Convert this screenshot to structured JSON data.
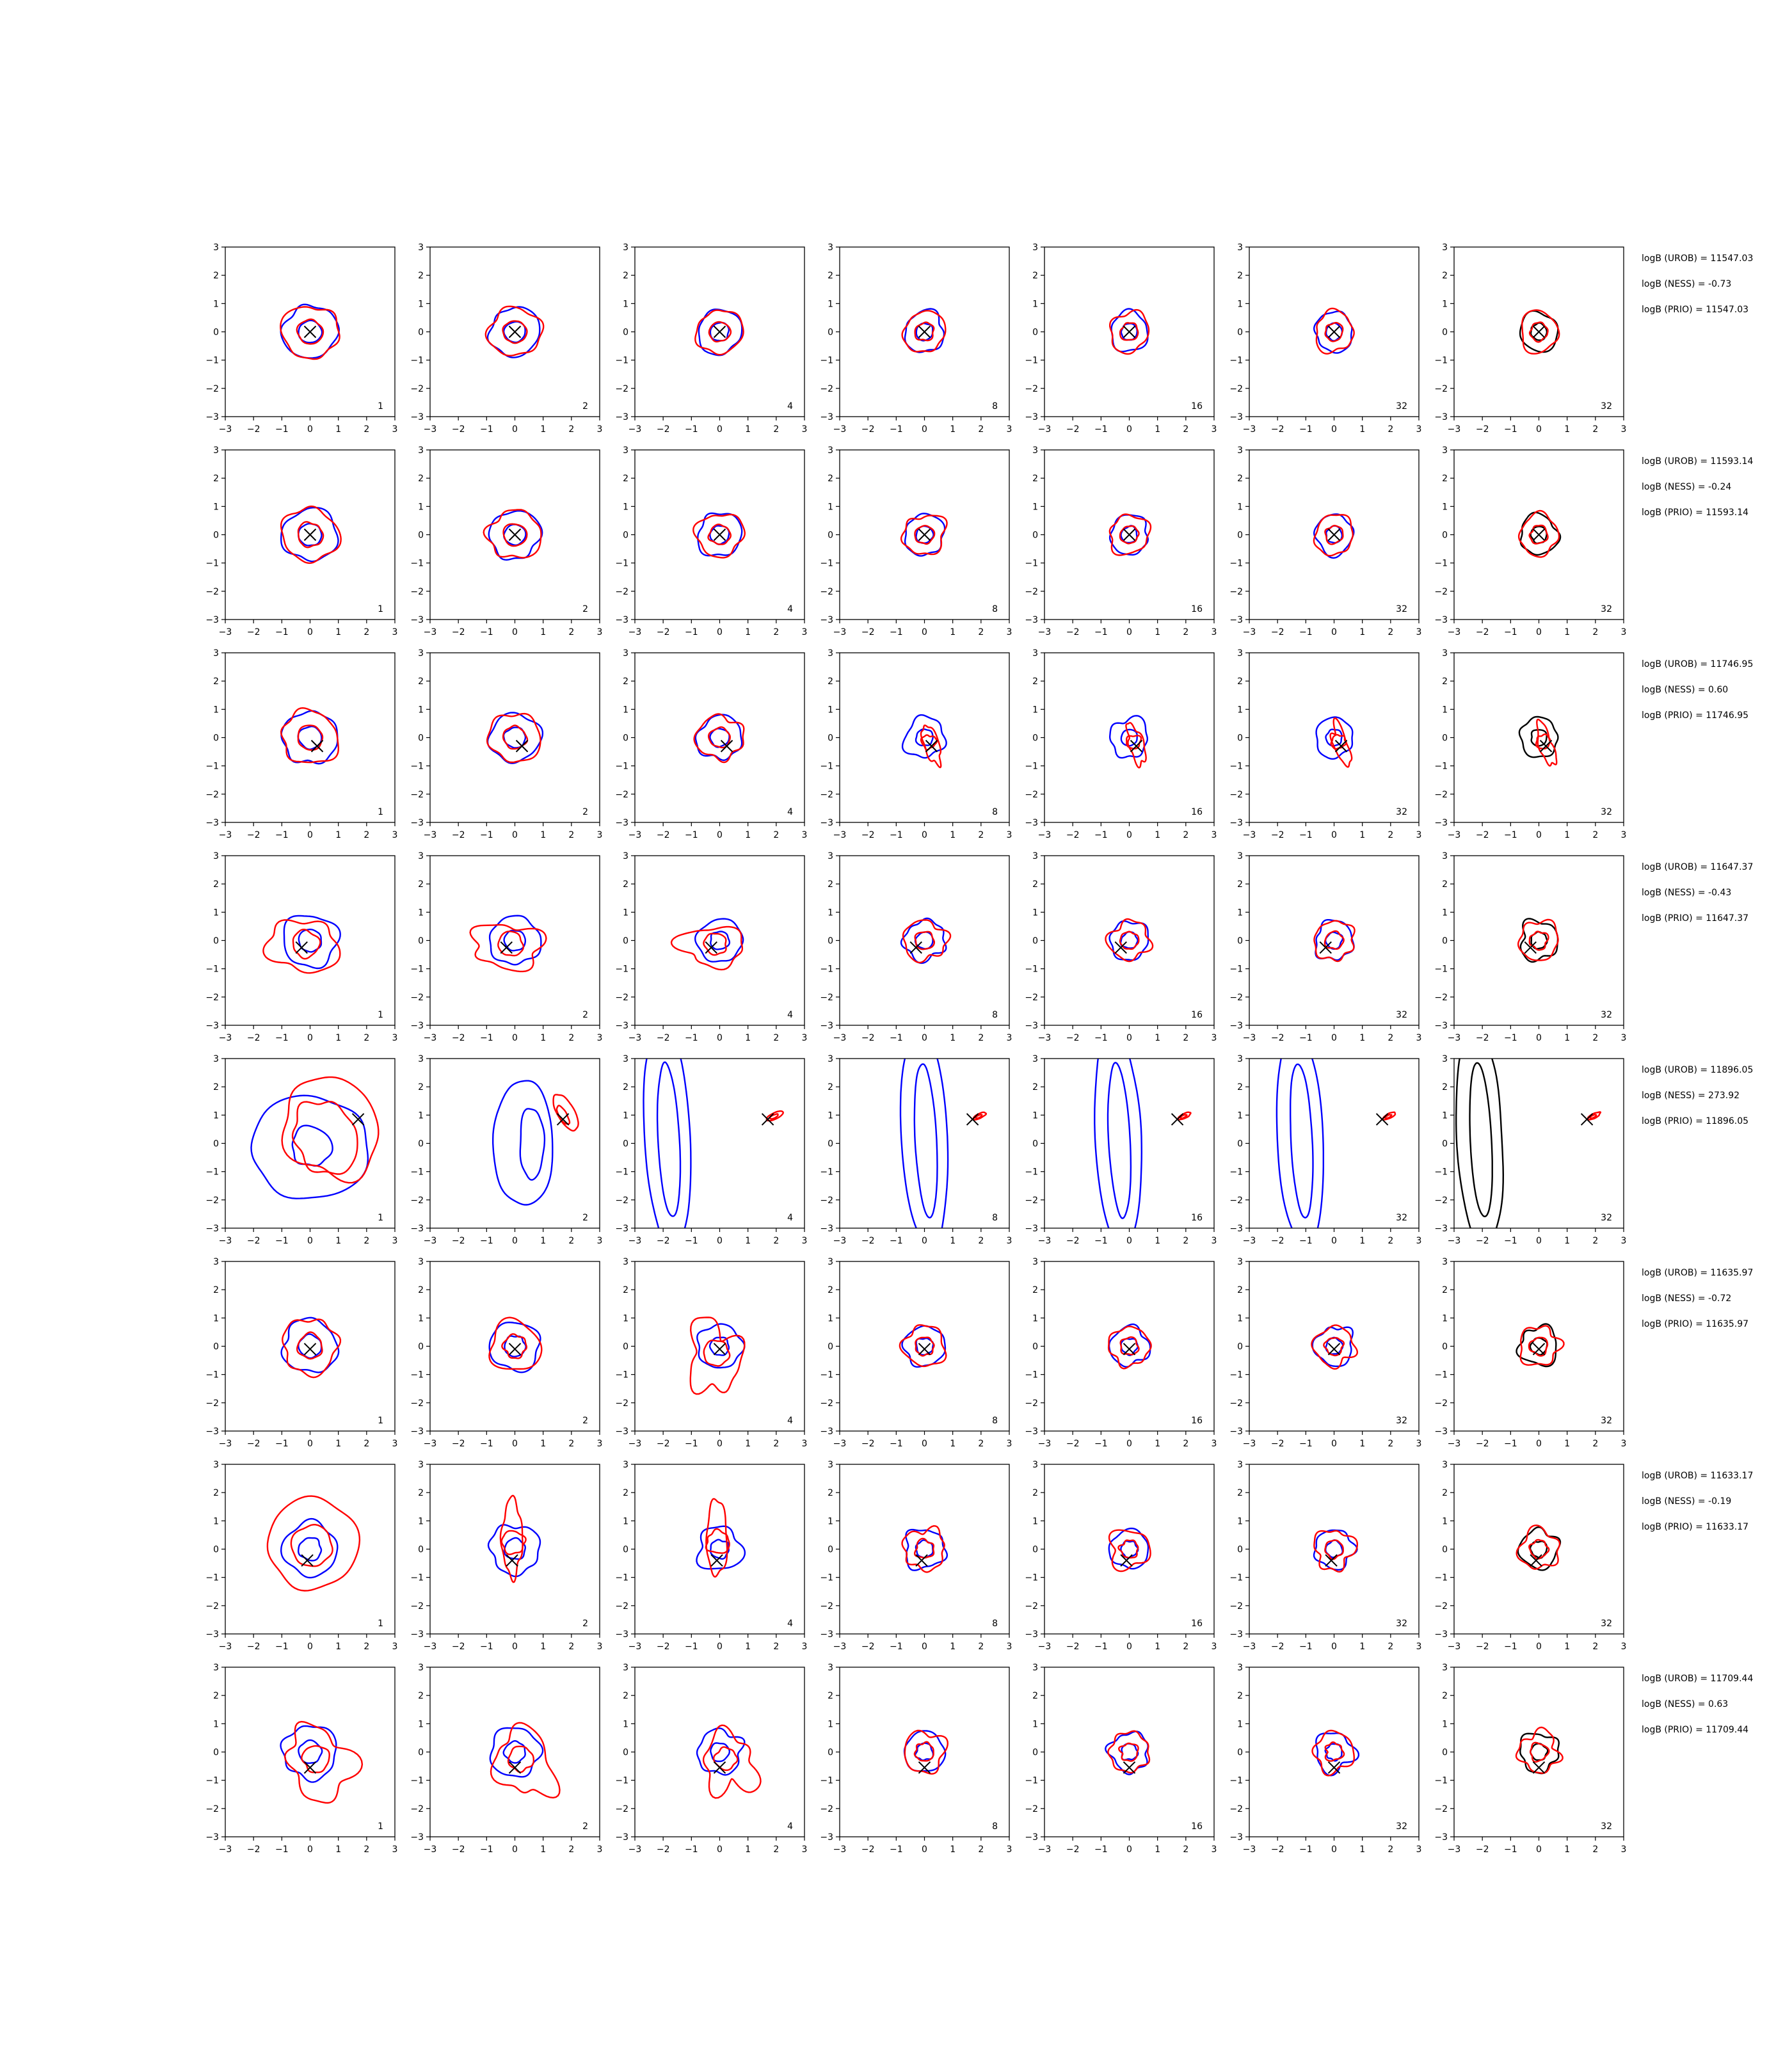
{
  "chart_data": {
    "type": "contour-grid",
    "rows": 8,
    "cols": 7,
    "xlim": [
      -3,
      3
    ],
    "ylim": [
      -3,
      3
    ],
    "ticks": [
      -3,
      -2,
      -1,
      0,
      1,
      2,
      3
    ],
    "tick_labels": [
      "−3",
      "−2",
      "−1",
      "0",
      "1",
      "2",
      "3"
    ],
    "panel_labels": [
      "1",
      "2",
      "4",
      "8",
      "16",
      "32",
      "32"
    ],
    "colors": {
      "blue": "#0000ff",
      "red": "#ff0000",
      "black": "#000000",
      "marker": "#000000"
    },
    "rows_data": [
      {
        "marker": [
          0.0,
          0.0
        ],
        "annotations": [
          "logB (UROB) = 11547.03",
          "logB (NESS) = -0.73",
          "logB (PRIO) = 11547.03"
        ]
      },
      {
        "marker": [
          0.0,
          0.0
        ],
        "annotations": [
          "logB (UROB) = 11593.14",
          "logB (NESS) = -0.24",
          "logB (PRIO) = 11593.14"
        ]
      },
      {
        "marker": [
          0.25,
          -0.3
        ],
        "annotations": [
          "logB (UROB) = 11746.95",
          "logB (NESS) = 0.60",
          "logB (PRIO) = 11746.95"
        ]
      },
      {
        "marker": [
          -0.3,
          -0.25
        ],
        "annotations": [
          "logB (UROB) = 11647.37",
          "logB (NESS) = -0.43",
          "logB (PRIO) = 11647.37"
        ]
      },
      {
        "marker": [
          1.7,
          0.85
        ],
        "annotations": [
          "logB (UROB) = 11896.05",
          "logB (NESS) = 273.92",
          "logB (PRIO) = 11896.05"
        ]
      },
      {
        "marker": [
          0.0,
          -0.1
        ],
        "annotations": [
          "logB (UROB) = 11635.97",
          "logB (NESS) = -0.72",
          "logB (PRIO) = 11635.97"
        ]
      },
      {
        "marker": [
          -0.1,
          -0.4
        ],
        "annotations": [
          "logB (UROB) = 11633.17",
          "logB (NESS) = -0.19",
          "logB (PRIO) = 11633.17"
        ]
      },
      {
        "marker": [
          0.0,
          -0.55
        ],
        "annotations": [
          "logB (UROB) = 11709.44",
          "logB (NESS) = 0.63",
          "logB (PRIO) = 11709.44"
        ]
      }
    ]
  }
}
